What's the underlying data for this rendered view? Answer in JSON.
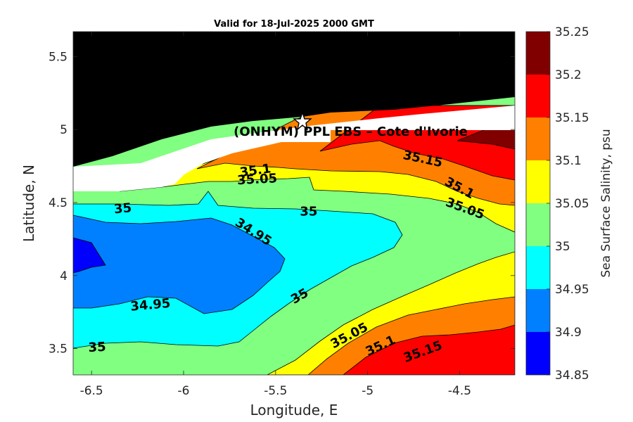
{
  "chart_data": {
    "type": "contour",
    "title": "Valid for 18-Jul-2025 2000 GMT",
    "xlabel": "Longitude, E",
    "ylabel": "Latitude, N",
    "colorbar_label": "Sea Surface Salinity, psu",
    "xlim": [
      -6.6,
      -4.2
    ],
    "ylim": [
      3.32,
      5.67
    ],
    "x_ticks": [
      "-6.5",
      "-6",
      "-5.5",
      "-5",
      "-4.5"
    ],
    "y_ticks": [
      "3.5",
      "4",
      "4.5",
      "5",
      "5.5"
    ],
    "levels": [
      34.85,
      34.9,
      34.95,
      35,
      35.05,
      35.1,
      35.15,
      35.2,
      35.25
    ],
    "level_labels": [
      "34.85",
      "34.9",
      "34.95",
      "35",
      "35.05",
      "35.1",
      "35.15",
      "35.2",
      "35.25"
    ],
    "level_colors": [
      "#0000ff",
      "#0080ff",
      "#00ffff",
      "#80ff80",
      "#ffff00",
      "#ff8000",
      "#ff0000",
      "#800000"
    ],
    "land_color": "#000000",
    "marker": {
      "lon": -5.34,
      "lat": 5.05,
      "symbol": "star"
    },
    "location_label": "(ONHYM) PPL EBS  – Cote d'Ivorie",
    "contour_labels": [
      {
        "text": "35.1",
        "lon": -5.61,
        "lat": 4.72,
        "angle": -8
      },
      {
        "text": "35.05",
        "lon": -5.6,
        "lat": 4.66,
        "angle": -3
      },
      {
        "text": "35",
        "lon": -6.33,
        "lat": 4.46,
        "angle": -5
      },
      {
        "text": "35",
        "lon": -5.32,
        "lat": 4.44,
        "angle": 0
      },
      {
        "text": "34.95",
        "lon": -5.62,
        "lat": 4.3,
        "angle": 32
      },
      {
        "text": "35.15",
        "lon": -4.7,
        "lat": 4.8,
        "angle": 12
      },
      {
        "text": "35.1",
        "lon": -4.5,
        "lat": 4.6,
        "angle": 28
      },
      {
        "text": "35.05",
        "lon": -4.47,
        "lat": 4.46,
        "angle": 20
      },
      {
        "text": "34.95",
        "lon": -6.18,
        "lat": 3.8,
        "angle": -5
      },
      {
        "text": "35",
        "lon": -5.37,
        "lat": 3.86,
        "angle": -30
      },
      {
        "text": "35",
        "lon": -6.47,
        "lat": 3.51,
        "angle": -3
      },
      {
        "text": "35.05",
        "lon": -5.1,
        "lat": 3.59,
        "angle": -28
      },
      {
        "text": "35.1",
        "lon": -4.93,
        "lat": 3.52,
        "angle": -25
      },
      {
        "text": "35.15",
        "lon": -4.7,
        "lat": 3.48,
        "angle": -20
      }
    ]
  }
}
